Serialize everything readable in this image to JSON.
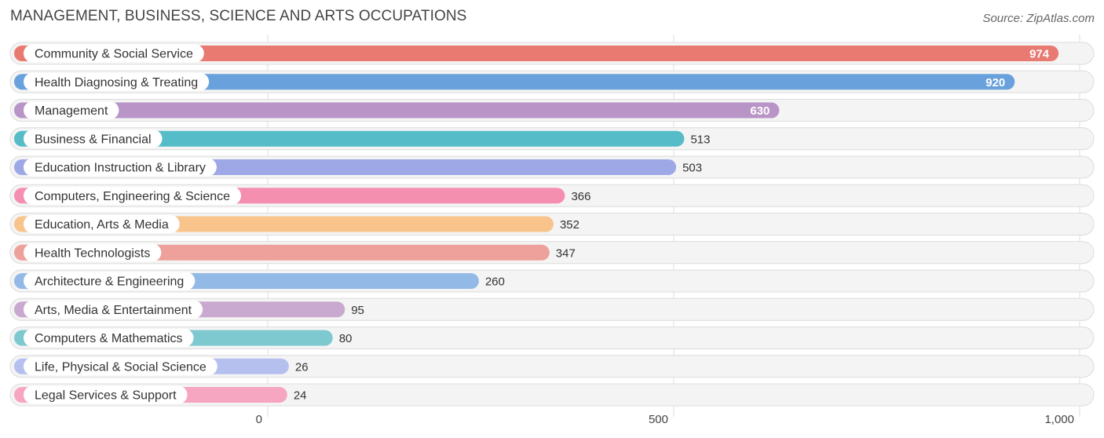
{
  "header": {
    "title": "MANAGEMENT, BUSINESS, SCIENCE AND ARTS OCCUPATIONS",
    "source": "Source: ZipAtlas.com"
  },
  "chart_data": {
    "type": "bar",
    "orientation": "horizontal",
    "title": "MANAGEMENT, BUSINESS, SCIENCE AND ARTS OCCUPATIONS",
    "xlabel": "",
    "ylabel": "",
    "xlim": [
      0,
      1000
    ],
    "ticks": [
      {
        "value": 0,
        "label": "0"
      },
      {
        "value": 500,
        "label": "500"
      },
      {
        "value": 1000,
        "label": "1,000"
      }
    ],
    "grid": true,
    "categories": [
      "Community & Social Service",
      "Health Diagnosing & Treating",
      "Management",
      "Business & Financial",
      "Education Instruction & Library",
      "Computers, Engineering & Science",
      "Education, Arts & Media",
      "Health Technologists",
      "Architecture & Engineering",
      "Arts, Media & Entertainment",
      "Computers & Mathematics",
      "Life, Physical & Social Science",
      "Legal Services & Support"
    ],
    "values": [
      974,
      920,
      630,
      513,
      503,
      366,
      352,
      347,
      260,
      95,
      80,
      26,
      24
    ],
    "value_labels": [
      "974",
      "920",
      "630",
      "513",
      "503",
      "366",
      "352",
      "347",
      "260",
      "95",
      "80",
      "26",
      "24"
    ],
    "colors": [
      "#e87a72",
      "#68a1dc",
      "#b994c6",
      "#56bcc8",
      "#9ea8e6",
      "#f48fb0",
      "#f9c48c",
      "#eea09b",
      "#93b9e6",
      "#c9a9cf",
      "#7ec9cf",
      "#b6c0ee",
      "#f7a6c1"
    ]
  }
}
